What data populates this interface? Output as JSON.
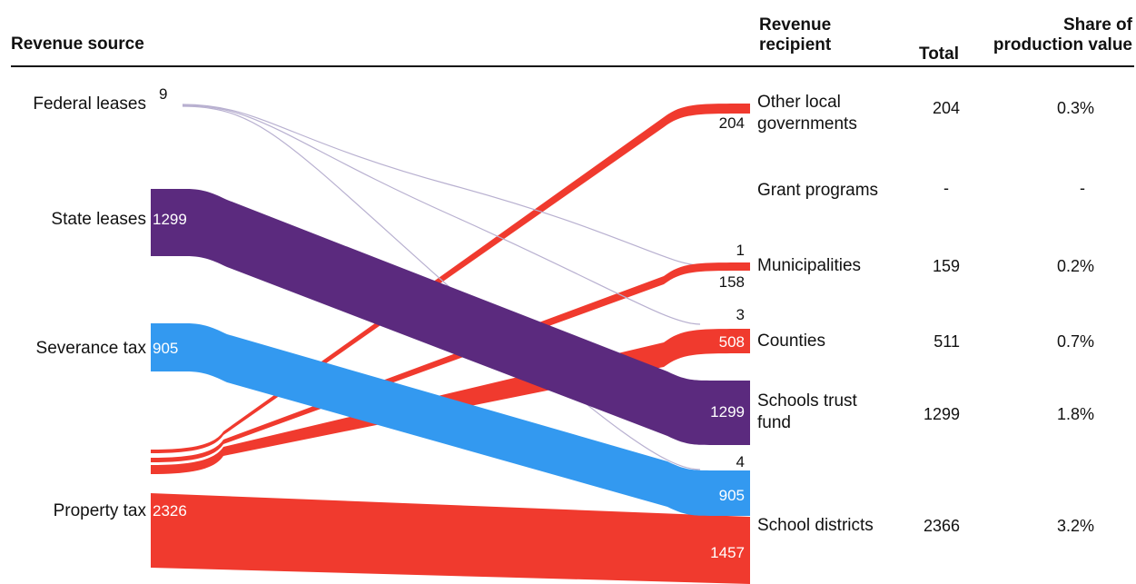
{
  "header": {
    "source": "Revenue source",
    "recipient_line1": "Revenue",
    "recipient_line2": "recipient",
    "total": "Total",
    "share_line1": "Share of",
    "share_line2": "production value"
  },
  "colors": {
    "federal_leases": "#b8b0d0",
    "state_leases": "#5b2a7e",
    "severance_tax": "#3399f0",
    "property_tax": "#f03a2e"
  },
  "sources": [
    {
      "name": "Federal leases",
      "value": "9"
    },
    {
      "name": "State leases",
      "value": "1299"
    },
    {
      "name": "Severance tax",
      "value": "905"
    },
    {
      "name": "Property tax",
      "value": "2326"
    }
  ],
  "recipients": [
    {
      "line1": "Other local",
      "line2": "governments",
      "total": "204",
      "share": "0.3%"
    },
    {
      "line1": "Grant programs",
      "line2": "",
      "total": "-",
      "share": "-"
    },
    {
      "line1": "Municipalities",
      "line2": "",
      "total": "159",
      "share": "0.2%"
    },
    {
      "line1": "Counties",
      "line2": "",
      "total": "511",
      "share": "0.7%"
    },
    {
      "line1": "Schools trust",
      "line2": "fund",
      "total": "1299",
      "share": "1.8%"
    },
    {
      "line1": "School districts",
      "line2": "",
      "total": "2366",
      "share": "3.2%"
    }
  ],
  "flows": [
    {
      "from": "Property tax",
      "to": "Other local governments",
      "value": 204,
      "label": "204"
    },
    {
      "from": "Federal leases",
      "to": "Municipalities",
      "value": 1,
      "label": "1"
    },
    {
      "from": "Property tax",
      "to": "Municipalities",
      "value": 158,
      "label": "158"
    },
    {
      "from": "Federal leases",
      "to": "Counties",
      "value": 3,
      "label": "3"
    },
    {
      "from": "Property tax",
      "to": "Counties",
      "value": 508,
      "label": "508"
    },
    {
      "from": "State leases",
      "to": "Schools trust fund",
      "value": 1299,
      "label": "1299"
    },
    {
      "from": "Federal leases",
      "to": "School districts",
      "value": 4,
      "label": "4"
    },
    {
      "from": "Severance tax",
      "to": "School districts",
      "value": 905,
      "label": "905"
    },
    {
      "from": "Property tax",
      "to": "School districts",
      "value": 1457,
      "label": "1457"
    }
  ]
}
